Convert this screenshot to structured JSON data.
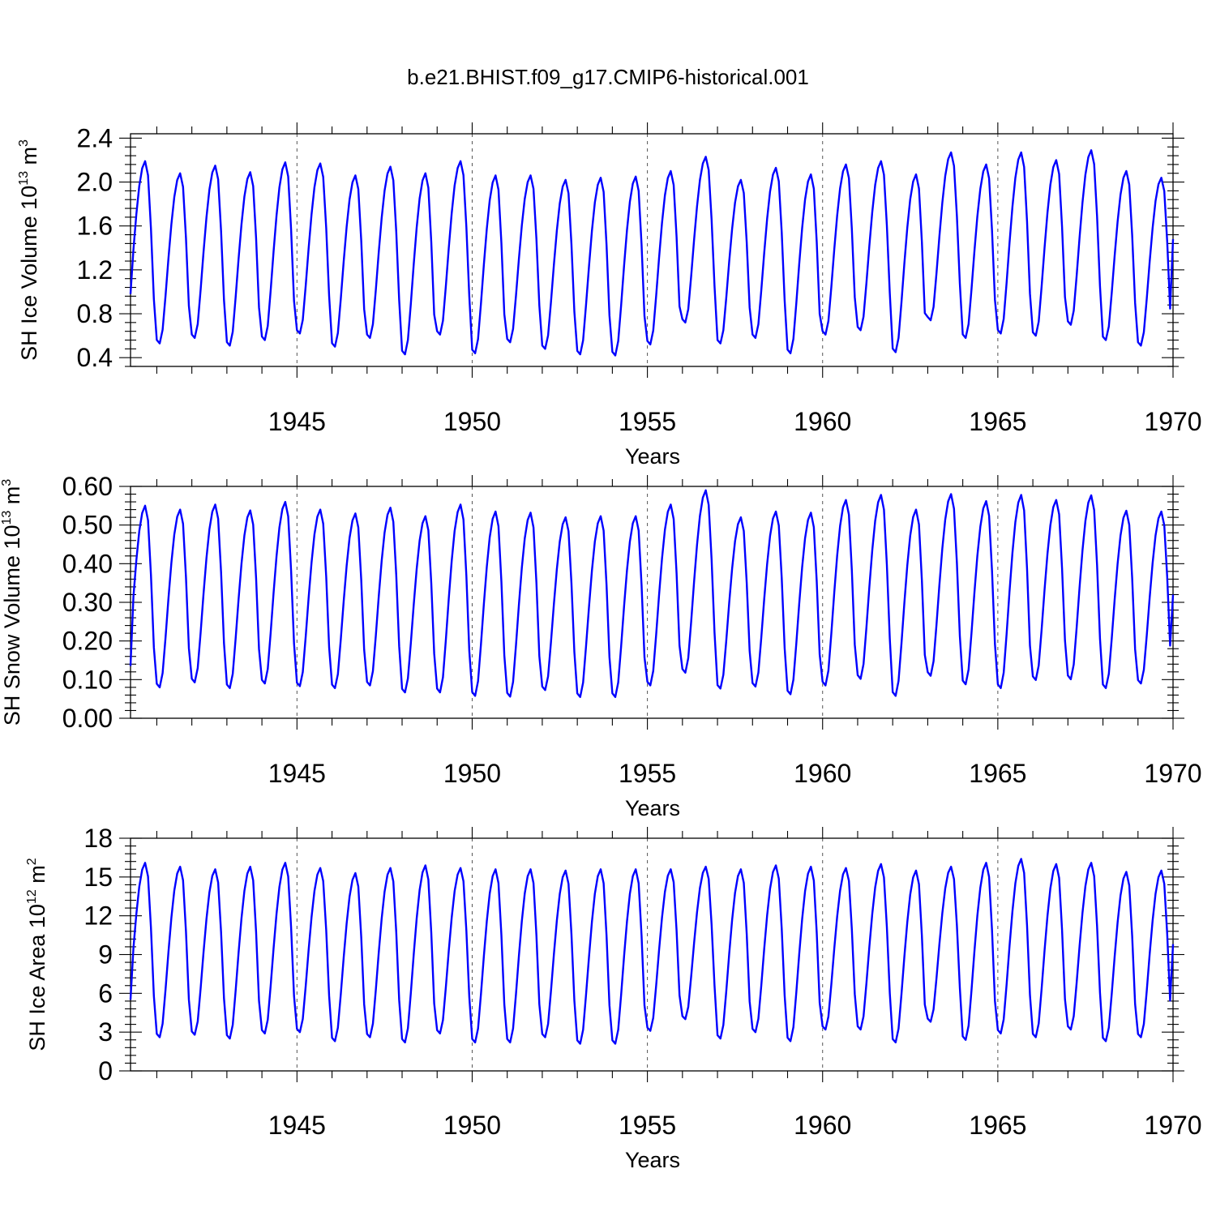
{
  "title": "b.e21.BHIST.f09_g17.CMIP6-historical.001",
  "colors": {
    "series": "#0000ff",
    "frame": "#000000"
  },
  "chart_data": [
    {
      "type": "line",
      "ylabel": "SH Ice Volume 10",
      "ylabel_sup": "13",
      "ylabel_unit": " m",
      "ylabel_unit_sup": "3",
      "xlabel": "Years",
      "xlim": [
        1940.25,
        1970.0
      ],
      "ylim": [
        0.32,
        2.44
      ],
      "yticks": [
        0.4,
        0.8,
        1.2,
        1.6,
        2.0,
        2.4
      ],
      "ytick_labels": [
        "0.4",
        "0.8",
        "1.2",
        "1.6",
        "2.0",
        "2.4"
      ],
      "xticks": [
        1945,
        1950,
        1955,
        1960,
        1965,
        1970
      ],
      "xtick_labels": [
        "1945",
        "1950",
        "1955",
        "1960",
        "1965",
        "1970"
      ],
      "start_month": 4,
      "first_value": 0.98,
      "last_value": 1.48,
      "annual_max": [
        2.19,
        2.08,
        2.15,
        2.09,
        2.18,
        2.17,
        2.06,
        2.14,
        2.08,
        2.19,
        2.06,
        2.06,
        2.02,
        2.04,
        2.05,
        2.1,
        2.23,
        2.02,
        2.13,
        2.07,
        2.16,
        2.19,
        2.07,
        2.27,
        2.16,
        2.27,
        2.2,
        2.29,
        2.1,
        2.04
      ],
      "annual_min": [
        0.58,
        0.53,
        0.58,
        0.51,
        0.56,
        0.62,
        0.5,
        0.58,
        0.43,
        0.61,
        0.44,
        0.54,
        0.48,
        0.43,
        0.42,
        0.52,
        0.72,
        0.53,
        0.58,
        0.44,
        0.61,
        0.65,
        0.45,
        0.74,
        0.58,
        0.62,
        0.6,
        0.7,
        0.56,
        0.51
      ]
    },
    {
      "type": "line",
      "ylabel": "SH Snow Volume 10",
      "ylabel_sup": "13",
      "ylabel_unit": " m",
      "ylabel_unit_sup": "3",
      "xlabel": "Years",
      "xlim": [
        1940.25,
        1970.0
      ],
      "ylim": [
        0.0,
        0.6
      ],
      "yticks": [
        0.0,
        0.1,
        0.2,
        0.3,
        0.4,
        0.5,
        0.6
      ],
      "ytick_labels": [
        "0.00",
        "0.10",
        "0.20",
        "0.30",
        "0.40",
        "0.50",
        "0.60"
      ],
      "xticks": [
        1945,
        1950,
        1955,
        1960,
        1965,
        1970
      ],
      "xtick_labels": [
        "1945",
        "1950",
        "1955",
        "1960",
        "1965",
        "1970"
      ],
      "start_month": 4,
      "first_value": 0.135,
      "last_value": 0.32,
      "annual_max": [
        0.55,
        0.54,
        0.553,
        0.538,
        0.56,
        0.54,
        0.53,
        0.545,
        0.523,
        0.553,
        0.535,
        0.532,
        0.52,
        0.523,
        0.523,
        0.553,
        0.59,
        0.52,
        0.535,
        0.532,
        0.565,
        0.578,
        0.54,
        0.58,
        0.562,
        0.578,
        0.565,
        0.577,
        0.537,
        0.535
      ],
      "annual_min": [
        0.08,
        0.08,
        0.093,
        0.078,
        0.09,
        0.083,
        0.078,
        0.085,
        0.067,
        0.067,
        0.058,
        0.056,
        0.073,
        0.055,
        0.055,
        0.085,
        0.118,
        0.077,
        0.082,
        0.062,
        0.085,
        0.102,
        0.058,
        0.11,
        0.088,
        0.078,
        0.099,
        0.101,
        0.078,
        0.09
      ]
    },
    {
      "type": "line",
      "ylabel": "SH Ice Area 10",
      "ylabel_sup": "12",
      "ylabel_unit": " m",
      "ylabel_unit_sup": "2",
      "xlabel": "Years",
      "xlim": [
        1940.25,
        1970.0
      ],
      "ylim": [
        0,
        18
      ],
      "yticks": [
        0,
        3,
        6,
        9,
        12,
        15,
        18
      ],
      "ytick_labels": [
        "0",
        "3",
        "6",
        "9",
        "12",
        "15",
        "18"
      ],
      "xticks": [
        1945,
        1950,
        1955,
        1960,
        1965,
        1970
      ],
      "xtick_labels": [
        "1945",
        "1950",
        "1955",
        "1960",
        "1965",
        "1970"
      ],
      "start_month": 4,
      "first_value": 5.5,
      "last_value": 9.8,
      "annual_max": [
        16.1,
        15.8,
        15.6,
        15.8,
        16.1,
        15.7,
        15.3,
        15.7,
        15.9,
        15.7,
        15.6,
        15.6,
        15.5,
        15.6,
        15.6,
        15.6,
        15.8,
        15.6,
        15.9,
        15.8,
        15.7,
        16.0,
        15.5,
        15.8,
        16.1,
        16.4,
        16.0,
        16.1,
        15.4,
        15.5
      ],
      "annual_min": [
        2.9,
        2.6,
        2.8,
        2.5,
        2.9,
        3.0,
        2.3,
        2.6,
        2.2,
        2.9,
        2.2,
        2.2,
        2.6,
        2.1,
        2.1,
        3.1,
        4.0,
        2.5,
        3.0,
        2.3,
        3.2,
        3.2,
        2.2,
        3.8,
        2.4,
        2.9,
        2.6,
        3.2,
        2.3,
        2.6
      ]
    }
  ]
}
